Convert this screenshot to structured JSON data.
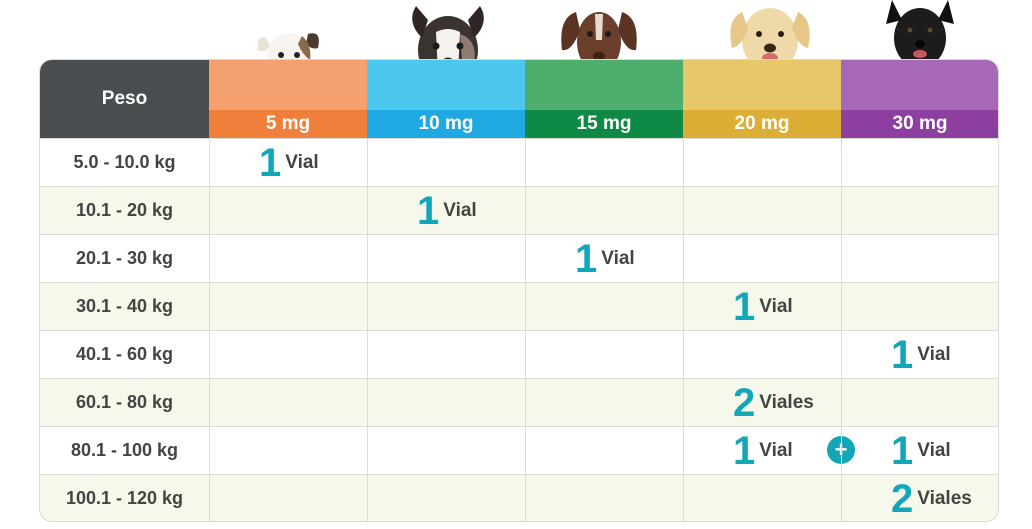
{
  "table": {
    "header_label": "Peso",
    "doses": [
      {
        "label": "5 mg",
        "top_color": "#f5a06f",
        "bottom_color": "#f07f3b"
      },
      {
        "label": "10 mg",
        "top_color": "#4cc8ef",
        "bottom_color": "#1fa9e3"
      },
      {
        "label": "15 mg",
        "top_color": "#4fae6e",
        "bottom_color": "#0f8a46"
      },
      {
        "label": "20 mg",
        "top_color": "#e6c86a",
        "bottom_color": "#dcae36"
      },
      {
        "label": "30 mg",
        "top_color": "#a868b8",
        "bottom_color": "#8c3f9f"
      }
    ],
    "rows": [
      {
        "weight": "5.0 - 10.0 kg"
      },
      {
        "weight": "10.1 - 20 kg"
      },
      {
        "weight": "20.1 - 30 kg"
      },
      {
        "weight": "30.1 - 40 kg"
      },
      {
        "weight": "40.1 - 60 kg"
      },
      {
        "weight": "60.1 - 80 kg"
      },
      {
        "weight": "80.1 - 100 kg"
      },
      {
        "weight": "100.1 - 120 kg"
      }
    ],
    "entries": [
      {
        "row": 0,
        "col": 0,
        "count": "1",
        "unit": "Vial"
      },
      {
        "row": 1,
        "col": 1,
        "count": "1",
        "unit": "Vial"
      },
      {
        "row": 2,
        "col": 2,
        "count": "1",
        "unit": "Vial"
      },
      {
        "row": 3,
        "col": 3,
        "count": "1",
        "unit": "Vial"
      },
      {
        "row": 4,
        "col": 4,
        "count": "1",
        "unit": "Vial"
      },
      {
        "row": 5,
        "col": 3,
        "count": "2",
        "unit": "Viales"
      },
      {
        "row": 6,
        "col": 3,
        "count": "1",
        "unit": "Vial"
      },
      {
        "row": 6,
        "col": 4,
        "count": "1",
        "unit": "Vial"
      },
      {
        "row": 7,
        "col": 4,
        "count": "2",
        "unit": "Viales"
      }
    ],
    "plus_symbol": "+",
    "accent_color": "#12a6b9"
  },
  "dogs": [
    {
      "breed_icon": "small-terrier-dog-icon"
    },
    {
      "breed_icon": "border-collie-dog-icon"
    },
    {
      "breed_icon": "pointer-dog-icon"
    },
    {
      "breed_icon": "labrador-dog-icon"
    },
    {
      "breed_icon": "black-shepherd-dog-icon"
    }
  ]
}
